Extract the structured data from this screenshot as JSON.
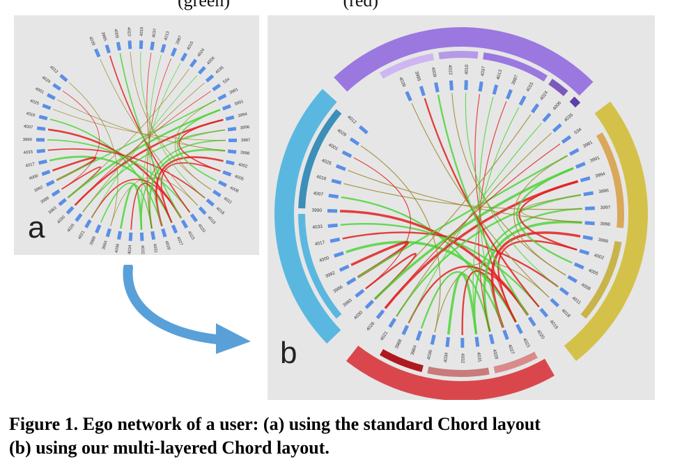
{
  "header_fragment": "(green)                         (red)",
  "panel_a": {
    "letter": "a",
    "nodes": [
      "4039",
      "3985",
      "4009",
      "4022",
      "4010",
      "4037",
      "4013",
      "3987",
      "4015",
      "4024",
      "4006",
      "4035",
      "534",
      "3981",
      "3991",
      "3994",
      "3996",
      "3997",
      "3998",
      "4002",
      "4005",
      "4008",
      "4011",
      "4018",
      "4019",
      "4020",
      "4023",
      "4027",
      "4028",
      "4031",
      "4032",
      "4034",
      "4036",
      "3984",
      "3988",
      "4021",
      "4026",
      "4030",
      "3983",
      "3986",
      "3992",
      "4000",
      "4017",
      "4033",
      "3990",
      "4007",
      "4016",
      "4025",
      "4001",
      "4029",
      "4012"
    ]
  },
  "panel_b": {
    "letter": "b",
    "nodes": [
      "4039",
      "3985",
      "4009",
      "4022",
      "4010",
      "4037",
      "4013",
      "3987",
      "4015",
      "4024",
      "4006",
      "4035",
      "534",
      "3981",
      "3991",
      "3994",
      "3996",
      "3997",
      "3998",
      "3999",
      "4002",
      "4005",
      "4008",
      "4011",
      "4018",
      "4019",
      "4020",
      "4023",
      "4027",
      "4028",
      "4031",
      "4032",
      "4034",
      "4036",
      "3984",
      "3988",
      "4021",
      "4026",
      "4030",
      "3983",
      "3986",
      "3992",
      "4000",
      "4017",
      "4033",
      "3990",
      "4007",
      "4016",
      "4025",
      "4001",
      "4029",
      "4012"
    ],
    "outer_groups": [
      {
        "name": "purple",
        "color": "#9b77e0"
      },
      {
        "name": "yellow",
        "color": "#d4c14a"
      },
      {
        "name": "red",
        "color": "#d9474c"
      },
      {
        "name": "blue",
        "color": "#5ab8e0"
      }
    ]
  },
  "colors": {
    "node_tick": "#5b8ee6",
    "link_green": "#4fd43a",
    "link_red": "#e02020",
    "link_olive": "#9a8a30",
    "panel_bg": "#e6e6e6",
    "arrow": "#5aa0d8"
  },
  "caption": {
    "line1": "Figure 1. Ego network of a user: (a) using the standard Chord layout",
    "line2": "(b) using our multi-layered Chord layout."
  }
}
